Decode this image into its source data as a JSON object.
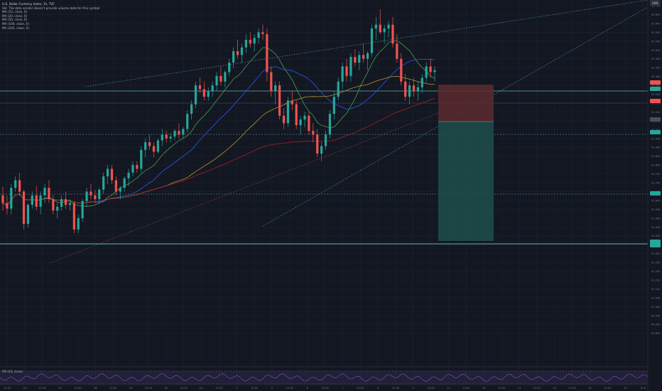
{
  "header": {
    "symbol_line": "U.S. Dollar Currency Index, 1h, TVC",
    "vol_line": "Vol: The data vendor doesn't provide volume data for this symbol",
    "ma_lines": [
      "MA (10, close, 0)",
      "MA (20, close, 0)",
      "MA (50, close, 0)",
      "MA (100, close, 0)",
      "MA (200, close, 0)"
    ]
  },
  "rsi": {
    "label": "RSI (14, close)"
  },
  "currency_badge": "USD",
  "colors": {
    "bg": "#131722",
    "up": "#26a69a",
    "down": "#ef5350",
    "ma10": "#6fcf97",
    "ma20": "#4caf50",
    "ma50": "#2962ff",
    "ma100": "#c9a227",
    "ma200": "#b22222",
    "rsi": "#7e57c2",
    "level": "#5fb3b3",
    "tp_zone": "#1f4f4b",
    "sl_zone": "#5a2a2f"
  },
  "chart_data": {
    "type": "candlestick",
    "price_range": [
      90.8,
      92.7
    ],
    "price_ticks": [
      "92.700",
      "92.650",
      "92.600",
      "92.550",
      "92.500",
      "92.450",
      "92.400",
      "92.350",
      "92.300",
      "92.250",
      "92.200",
      "92.150",
      "92.100",
      "92.050",
      "92.000",
      "91.950",
      "91.900",
      "91.850",
      "91.800",
      "91.750",
      "91.700",
      "91.650",
      "91.600",
      "91.550",
      "91.500",
      "91.450",
      "91.400",
      "91.350",
      "91.300",
      "91.250",
      "91.200",
      "91.150",
      "91.100",
      "91.050",
      "91.000",
      "90.950",
      "90.900",
      "90.850"
    ],
    "time_labels": [
      "12:00",
      "24",
      "12:00",
      "25",
      "12:00",
      "28",
      "12:00",
      "29",
      "12:00",
      "30",
      "12:00",
      "Jul",
      "12:00",
      "2",
      "12:00",
      "5",
      "12:00",
      "6",
      "12:00",
      "7",
      "12:00",
      "8",
      "12:00",
      "9",
      "12:00",
      "12",
      "12:00",
      "13",
      "12:00",
      "14",
      "12:00",
      "15",
      "12:00",
      "16",
      "12:00",
      "19",
      "12:0"
    ],
    "candles": [
      [
        91.7,
        91.745,
        91.62,
        91.66
      ],
      [
        91.66,
        91.7,
        91.6,
        91.63
      ],
      [
        91.63,
        91.76,
        91.6,
        91.74
      ],
      [
        91.74,
        91.8,
        91.72,
        91.78
      ],
      [
        91.78,
        91.82,
        91.7,
        91.72
      ],
      [
        91.72,
        91.73,
        91.52,
        91.55
      ],
      [
        91.55,
        91.66,
        91.53,
        91.65
      ],
      [
        91.65,
        91.72,
        91.63,
        91.7
      ],
      [
        91.7,
        91.75,
        91.62,
        91.64
      ],
      [
        91.64,
        91.72,
        91.6,
        91.7
      ],
      [
        91.7,
        91.76,
        91.66,
        91.74
      ],
      [
        91.74,
        91.78,
        91.66,
        91.68
      ],
      [
        91.68,
        91.7,
        91.6,
        91.62
      ],
      [
        91.62,
        91.66,
        91.58,
        91.64
      ],
      [
        91.64,
        91.7,
        91.62,
        91.68
      ],
      [
        91.68,
        91.72,
        91.63,
        91.65
      ],
      [
        91.65,
        91.68,
        91.62,
        91.66
      ],
      [
        91.66,
        91.67,
        91.5,
        91.52
      ],
      [
        91.52,
        91.6,
        91.5,
        91.58
      ],
      [
        91.58,
        91.68,
        91.56,
        91.67
      ],
      [
        91.67,
        91.74,
        91.64,
        91.72
      ],
      [
        91.72,
        91.76,
        91.68,
        91.7
      ],
      [
        91.7,
        91.73,
        91.66,
        91.68
      ],
      [
        91.68,
        91.74,
        91.66,
        91.73
      ],
      [
        91.73,
        91.82,
        91.71,
        91.8
      ],
      [
        91.8,
        91.86,
        91.76,
        91.84
      ],
      [
        91.84,
        91.86,
        91.76,
        91.78
      ],
      [
        91.78,
        91.8,
        91.7,
        91.72
      ],
      [
        91.72,
        91.75,
        91.68,
        91.74
      ],
      [
        91.74,
        91.8,
        91.72,
        91.79
      ],
      [
        91.79,
        91.84,
        91.75,
        91.82
      ],
      [
        91.82,
        91.88,
        91.8,
        91.86
      ],
      [
        91.86,
        91.88,
        91.82,
        91.84
      ],
      [
        91.84,
        91.96,
        91.82,
        91.94
      ],
      [
        91.94,
        92.0,
        91.9,
        91.98
      ],
      [
        91.98,
        92.02,
        91.94,
        91.96
      ],
      [
        91.96,
        91.98,
        91.9,
        91.93
      ],
      [
        91.93,
        92.0,
        91.92,
        91.99
      ],
      [
        91.99,
        92.05,
        91.96,
        92.02
      ],
      [
        92.02,
        92.04,
        91.98,
        92.0
      ],
      [
        92.0,
        92.03,
        91.98,
        92.01
      ],
      [
        92.01,
        92.05,
        91.99,
        92.04
      ],
      [
        92.04,
        92.08,
        92.0,
        92.02
      ],
      [
        92.02,
        92.06,
        92.0,
        92.05
      ],
      [
        92.05,
        92.15,
        92.03,
        92.13
      ],
      [
        92.13,
        92.2,
        92.1,
        92.18
      ],
      [
        92.18,
        92.3,
        92.16,
        92.28
      ],
      [
        92.28,
        92.32,
        92.24,
        92.26
      ],
      [
        92.26,
        92.3,
        92.2,
        92.22
      ],
      [
        92.22,
        92.27,
        92.2,
        92.25
      ],
      [
        92.25,
        92.3,
        92.22,
        92.28
      ],
      [
        92.28,
        92.35,
        92.25,
        92.33
      ],
      [
        92.33,
        92.38,
        92.28,
        92.3
      ],
      [
        92.3,
        92.36,
        92.27,
        92.35
      ],
      [
        92.35,
        92.42,
        92.33,
        92.4
      ],
      [
        92.4,
        92.48,
        92.37,
        92.46
      ],
      [
        92.46,
        92.52,
        92.42,
        92.44
      ],
      [
        92.44,
        92.5,
        92.4,
        92.48
      ],
      [
        92.48,
        92.55,
        92.45,
        92.52
      ],
      [
        92.52,
        92.56,
        92.48,
        92.5
      ],
      [
        92.5,
        92.55,
        92.46,
        92.53
      ],
      [
        92.53,
        92.58,
        92.5,
        92.56
      ],
      [
        92.56,
        92.6,
        92.52,
        92.55
      ],
      [
        92.55,
        92.58,
        92.3,
        92.35
      ],
      [
        92.35,
        92.38,
        92.22,
        92.25
      ],
      [
        92.25,
        92.3,
        92.18,
        92.28
      ],
      [
        92.28,
        92.3,
        92.1,
        92.12
      ],
      [
        92.12,
        92.16,
        92.05,
        92.08
      ],
      [
        92.08,
        92.22,
        92.06,
        92.2
      ],
      [
        92.2,
        92.25,
        92.15,
        92.18
      ],
      [
        92.18,
        92.2,
        92.05,
        92.07
      ],
      [
        92.07,
        92.12,
        92.02,
        92.1
      ],
      [
        92.1,
        92.14,
        92.06,
        92.12
      ],
      [
        92.12,
        92.14,
        92.02,
        92.04
      ],
      [
        92.04,
        92.08,
        91.98,
        92.02
      ],
      [
        92.02,
        92.05,
        91.9,
        91.92
      ],
      [
        91.92,
        91.98,
        91.88,
        91.96
      ],
      [
        91.96,
        92.04,
        91.94,
        92.02
      ],
      [
        92.02,
        92.15,
        92.0,
        92.13
      ],
      [
        92.13,
        92.25,
        92.1,
        92.22
      ],
      [
        92.22,
        92.32,
        92.2,
        92.3
      ],
      [
        92.3,
        92.4,
        92.26,
        92.38
      ],
      [
        92.38,
        92.42,
        92.3,
        92.33
      ],
      [
        92.33,
        92.45,
        92.3,
        92.43
      ],
      [
        92.43,
        92.47,
        92.38,
        92.4
      ],
      [
        92.4,
        92.46,
        92.36,
        92.44
      ],
      [
        92.44,
        92.5,
        92.4,
        92.42
      ],
      [
        92.42,
        92.46,
        92.36,
        92.45
      ],
      [
        92.45,
        92.6,
        92.43,
        92.58
      ],
      [
        92.58,
        92.64,
        92.52,
        92.6
      ],
      [
        92.6,
        92.68,
        92.55,
        92.56
      ],
      [
        92.56,
        92.6,
        92.5,
        92.58
      ],
      [
        92.58,
        92.62,
        92.53,
        92.6
      ],
      [
        92.6,
        92.64,
        92.48,
        92.5
      ],
      [
        92.5,
        92.55,
        92.4,
        92.42
      ],
      [
        92.42,
        92.45,
        92.28,
        92.3
      ],
      [
        92.3,
        92.34,
        92.2,
        92.22
      ],
      [
        92.22,
        92.3,
        92.18,
        92.28
      ],
      [
        92.28,
        92.32,
        92.22,
        92.25
      ],
      [
        92.25,
        92.3,
        92.2,
        92.27
      ],
      [
        92.27,
        92.34,
        92.24,
        92.32
      ],
      [
        92.32,
        92.4,
        92.3,
        92.38
      ],
      [
        92.38,
        92.42,
        92.32,
        92.35
      ],
      [
        92.35,
        92.38,
        92.3,
        92.36
      ]
    ]
  }
}
